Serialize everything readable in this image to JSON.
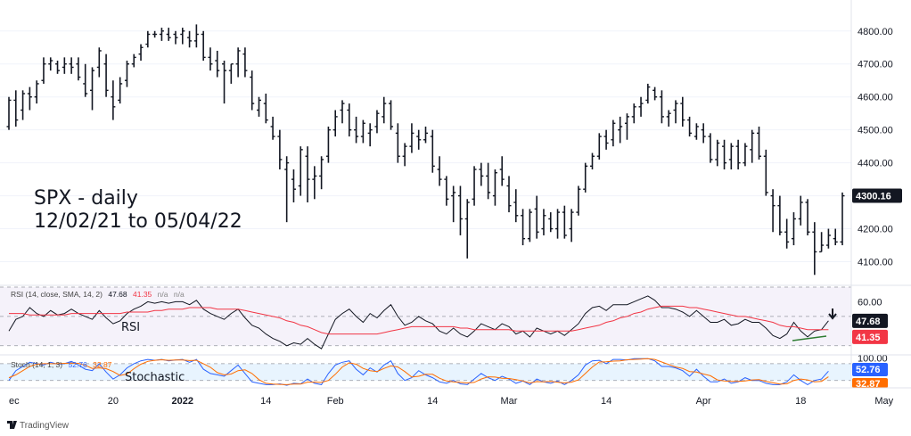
{
  "chart_data": {
    "type": "ohlc",
    "title_line1": "SPX - daily",
    "title_line2": "12/02/21 to 05/04/22",
    "brand": "TradingView",
    "price_axis": {
      "ylim": [
        4050,
        4840
      ],
      "ticks": [
        "4800.00",
        "4700.00",
        "4600.00",
        "4500.00",
        "4400.00",
        "4300.00",
        "4200.00",
        "4100.00"
      ],
      "tick_values": [
        4800,
        4700,
        4600,
        4500,
        4400,
        4300,
        4200,
        4100
      ],
      "last_price_label": "4300.16",
      "last_price": 4300.16
    },
    "x_axis": {
      "tick_labels": [
        "ec",
        "20",
        "2022",
        "14",
        "Feb",
        "14",
        "Mar",
        "14",
        "Apr",
        "18",
        "May"
      ],
      "tick_index": [
        0,
        15,
        25,
        37,
        47,
        61,
        72,
        86,
        100,
        114,
        126
      ]
    },
    "ohlc": [
      [
        4510,
        4600,
        4500,
        4590
      ],
      [
        4590,
        4620,
        4510,
        4530
      ],
      [
        4560,
        4620,
        4530,
        4610
      ],
      [
        4610,
        4630,
        4560,
        4600
      ],
      [
        4600,
        4650,
        4580,
        4640
      ],
      [
        4650,
        4720,
        4640,
        4700
      ],
      [
        4700,
        4720,
        4680,
        4710
      ],
      [
        4700,
        4710,
        4670,
        4680
      ],
      [
        4690,
        4720,
        4670,
        4700
      ],
      [
        4700,
        4720,
        4670,
        4690
      ],
      [
        4700,
        4720,
        4650,
        4660
      ],
      [
        4640,
        4700,
        4600,
        4610
      ],
      [
        4620,
        4690,
        4560,
        4680
      ],
      [
        4690,
        4750,
        4660,
        4740
      ],
      [
        4700,
        4730,
        4600,
        4620
      ],
      [
        4600,
        4650,
        4530,
        4570
      ],
      [
        4590,
        4660,
        4580,
        4640
      ],
      [
        4650,
        4710,
        4630,
        4700
      ],
      [
        4700,
        4730,
        4690,
        4720
      ],
      [
        4730,
        4760,
        4710,
        4750
      ],
      [
        4760,
        4800,
        4750,
        4790
      ],
      [
        4790,
        4800,
        4780,
        4790
      ],
      [
        4790,
        4810,
        4770,
        4800
      ],
      [
        4790,
        4810,
        4770,
        4780
      ],
      [
        4790,
        4800,
        4760,
        4780
      ],
      [
        4790,
        4810,
        4760,
        4800
      ],
      [
        4780,
        4800,
        4750,
        4770
      ],
      [
        4770,
        4820,
        4750,
        4790
      ],
      [
        4790,
        4800,
        4710,
        4720
      ],
      [
        4720,
        4750,
        4680,
        4700
      ],
      [
        4710,
        4740,
        4660,
        4680
      ],
      [
        4700,
        4710,
        4580,
        4680
      ],
      [
        4680,
        4700,
        4640,
        4700
      ],
      [
        4700,
        4750,
        4660,
        4740
      ],
      [
        4730,
        4750,
        4660,
        4680
      ],
      [
        4660,
        4680,
        4560,
        4580
      ],
      [
        4560,
        4600,
        4540,
        4590
      ],
      [
        4580,
        4610,
        4520,
        4530
      ],
      [
        4510,
        4540,
        4470,
        4480
      ],
      [
        4480,
        4500,
        4380,
        4410
      ],
      [
        4380,
        4420,
        4220,
        4400
      ],
      [
        4350,
        4380,
        4280,
        4320
      ],
      [
        4330,
        4450,
        4300,
        4440
      ],
      [
        4420,
        4450,
        4280,
        4350
      ],
      [
        4350,
        4390,
        4290,
        4360
      ],
      [
        4360,
        4420,
        4320,
        4410
      ],
      [
        4420,
        4510,
        4400,
        4500
      ],
      [
        4500,
        4560,
        4480,
        4540
      ],
      [
        4560,
        4590,
        4520,
        4580
      ],
      [
        4560,
        4580,
        4480,
        4500
      ],
      [
        4500,
        4540,
        4460,
        4480
      ],
      [
        4480,
        4530,
        4460,
        4520
      ],
      [
        4490,
        4520,
        4450,
        4500
      ],
      [
        4510,
        4560,
        4490,
        4550
      ],
      [
        4540,
        4600,
        4520,
        4580
      ],
      [
        4580,
        4590,
        4500,
        4510
      ],
      [
        4490,
        4520,
        4400,
        4420
      ],
      [
        4420,
        4460,
        4390,
        4450
      ],
      [
        4450,
        4520,
        4430,
        4490
      ],
      [
        4480,
        4500,
        4440,
        4470
      ],
      [
        4470,
        4510,
        4460,
        4490
      ],
      [
        4480,
        4500,
        4370,
        4390
      ],
      [
        4380,
        4420,
        4330,
        4350
      ],
      [
        4350,
        4360,
        4270,
        4290
      ],
      [
        4300,
        4330,
        4220,
        4310
      ],
      [
        4300,
        4330,
        4180,
        4230
      ],
      [
        4230,
        4290,
        4110,
        4280
      ],
      [
        4290,
        4390,
        4270,
        4380
      ],
      [
        4380,
        4400,
        4330,
        4360
      ],
      [
        4360,
        4400,
        4290,
        4310
      ],
      [
        4300,
        4380,
        4270,
        4370
      ],
      [
        4380,
        4420,
        4330,
        4350
      ],
      [
        4330,
        4360,
        4250,
        4270
      ],
      [
        4280,
        4320,
        4220,
        4240
      ],
      [
        4240,
        4260,
        4150,
        4170
      ],
      [
        4170,
        4260,
        4160,
        4250
      ],
      [
        4260,
        4300,
        4170,
        4190
      ],
      [
        4200,
        4260,
        4180,
        4240
      ],
      [
        4230,
        4250,
        4190,
        4200
      ],
      [
        4200,
        4260,
        4170,
        4250
      ],
      [
        4250,
        4270,
        4170,
        4180
      ],
      [
        4200,
        4260,
        4160,
        4250
      ],
      [
        4250,
        4330,
        4240,
        4320
      ],
      [
        4320,
        4400,
        4310,
        4390
      ],
      [
        4390,
        4430,
        4380,
        4420
      ],
      [
        4420,
        4490,
        4410,
        4480
      ],
      [
        4480,
        4500,
        4440,
        4460
      ],
      [
        4470,
        4530,
        4450,
        4520
      ],
      [
        4500,
        4540,
        4460,
        4510
      ],
      [
        4520,
        4550,
        4470,
        4540
      ],
      [
        4540,
        4580,
        4520,
        4570
      ],
      [
        4570,
        4600,
        4540,
        4580
      ],
      [
        4590,
        4640,
        4580,
        4630
      ],
      [
        4620,
        4630,
        4590,
        4600
      ],
      [
        4600,
        4620,
        4520,
        4540
      ],
      [
        4540,
        4560,
        4510,
        4550
      ],
      [
        4560,
        4590,
        4520,
        4580
      ],
      [
        4580,
        4600,
        4510,
        4530
      ],
      [
        4530,
        4540,
        4480,
        4490
      ],
      [
        4480,
        4520,
        4470,
        4510
      ],
      [
        4500,
        4520,
        4460,
        4480
      ],
      [
        4480,
        4490,
        4400,
        4410
      ],
      [
        4410,
        4470,
        4390,
        4460
      ],
      [
        4450,
        4470,
        4380,
        4400
      ],
      [
        4410,
        4460,
        4380,
        4450
      ],
      [
        4450,
        4470,
        4380,
        4400
      ],
      [
        4400,
        4460,
        4390,
        4450
      ],
      [
        4440,
        4500,
        4400,
        4490
      ],
      [
        4490,
        4510,
        4410,
        4420
      ],
      [
        4420,
        4440,
        4300,
        4310
      ],
      [
        4300,
        4320,
        4190,
        4270
      ],
      [
        4270,
        4300,
        4180,
        4190
      ],
      [
        4190,
        4230,
        4140,
        4160
      ],
      [
        4170,
        4250,
        4150,
        4230
      ],
      [
        4230,
        4300,
        4210,
        4280
      ],
      [
        4280,
        4290,
        4180,
        4190
      ],
      [
        4190,
        4220,
        4060,
        4130
      ],
      [
        4130,
        4190,
        4130,
        4150
      ],
      [
        4150,
        4200,
        4140,
        4180
      ],
      [
        4170,
        4200,
        4150,
        4160
      ],
      [
        4160,
        4310,
        4150,
        4300
      ]
    ],
    "rsi": {
      "header": "RSI (14, close, SMA, 14, 2)",
      "header_values": [
        "47.68",
        "41.35",
        "n/a",
        "n/a"
      ],
      "ylim": [
        25,
        70
      ],
      "tick_labels": [
        "60.00"
      ],
      "tick_values": [
        60
      ],
      "last_label": "47.68",
      "sma_label": "41.35",
      "panel_label": "RSI",
      "values": [
        40,
        48,
        50,
        56,
        52,
        50,
        54,
        51,
        52,
        55,
        52,
        50,
        48,
        54,
        49,
        45,
        47,
        52,
        55,
        57,
        60,
        59,
        60,
        59,
        60,
        60,
        58,
        61,
        55,
        52,
        50,
        48,
        52,
        55,
        49,
        44,
        42,
        38,
        35,
        33,
        30,
        32,
        31,
        35,
        31,
        28,
        38,
        48,
        52,
        55,
        50,
        46,
        52,
        49,
        54,
        58,
        50,
        44,
        46,
        50,
        47,
        45,
        40,
        38,
        42,
        38,
        36,
        40,
        45,
        43,
        41,
        45,
        43,
        38,
        40,
        36,
        42,
        40,
        38,
        40,
        37,
        41,
        45,
        52,
        56,
        57,
        54,
        58,
        58,
        58,
        60,
        62,
        64,
        61,
        56,
        56,
        55,
        53,
        50,
        54,
        50,
        46,
        46,
        48,
        44,
        45,
        48,
        46,
        46,
        42,
        37,
        35,
        38,
        46,
        40,
        36,
        40,
        41,
        47
      ],
      "sma": [
        52,
        52,
        52,
        51,
        51,
        51,
        51,
        51,
        51,
        52,
        52,
        52,
        52,
        52,
        52,
        52,
        52,
        53,
        53,
        53,
        53,
        54,
        54,
        55,
        55,
        55,
        56,
        56,
        56,
        56,
        55,
        55,
        55,
        55,
        54,
        53,
        52,
        51,
        50,
        49,
        47,
        46,
        44,
        43,
        41,
        39,
        38,
        38,
        38,
        38,
        38,
        38,
        38,
        38,
        39,
        40,
        41,
        42,
        43,
        43,
        43,
        43,
        43,
        43,
        43,
        42,
        42,
        41,
        41,
        41,
        41,
        41,
        41,
        40,
        40,
        40,
        40,
        40,
        40,
        40,
        40,
        40,
        41,
        42,
        43,
        44,
        46,
        47,
        49,
        50,
        52,
        53,
        55,
        56,
        57,
        57,
        57,
        57,
        56,
        56,
        55,
        54,
        53,
        52,
        51,
        50,
        50,
        49,
        48,
        47,
        46,
        44,
        43,
        43,
        42,
        41,
        41,
        41,
        41
      ]
    },
    "stoch": {
      "header": "Stoch (14, 1, 3)",
      "header_values": [
        "52.76",
        "32.87"
      ],
      "ylim": [
        0,
        105
      ],
      "tick_labels": [
        "100.00"
      ],
      "tick_values": [
        100
      ],
      "k_label": "52.76",
      "d_label": "32.87",
      "panel_label": "Stochastic",
      "k": [
        20,
        55,
        70,
        85,
        80,
        75,
        85,
        78,
        80,
        88,
        75,
        60,
        55,
        80,
        50,
        25,
        40,
        65,
        80,
        90,
        95,
        92,
        95,
        90,
        93,
        95,
        85,
        95,
        60,
        45,
        40,
        35,
        55,
        75,
        45,
        15,
        10,
        5,
        5,
        8,
        3,
        10,
        8,
        25,
        10,
        5,
        45,
        75,
        85,
        90,
        60,
        40,
        65,
        50,
        75,
        90,
        45,
        20,
        30,
        55,
        40,
        30,
        15,
        10,
        20,
        8,
        5,
        25,
        45,
        30,
        20,
        35,
        25,
        10,
        18,
        5,
        25,
        15,
        10,
        18,
        5,
        20,
        40,
        75,
        90,
        92,
        80,
        95,
        95,
        93,
        98,
        98,
        98,
        90,
        70,
        70,
        65,
        55,
        35,
        60,
        35,
        15,
        15,
        25,
        10,
        15,
        30,
        20,
        20,
        10,
        5,
        5,
        15,
        40,
        20,
        5,
        20,
        25,
        53
      ],
      "d": [
        30,
        40,
        55,
        70,
        78,
        80,
        80,
        80,
        81,
        82,
        81,
        74,
        63,
        65,
        62,
        52,
        38,
        43,
        62,
        78,
        88,
        92,
        94,
        92,
        93,
        93,
        91,
        92,
        80,
        67,
        48,
        40,
        43,
        55,
        58,
        45,
        23,
        10,
        7,
        6,
        5,
        7,
        7,
        14,
        14,
        13,
        20,
        42,
        68,
        83,
        78,
        63,
        55,
        52,
        63,
        72,
        68,
        52,
        32,
        35,
        42,
        42,
        28,
        18,
        15,
        13,
        11,
        13,
        25,
        33,
        32,
        28,
        27,
        23,
        18,
        11,
        16,
        15,
        17,
        14,
        11,
        14,
        22,
        45,
        68,
        86,
        87,
        89,
        90,
        94,
        95,
        96,
        98,
        95,
        86,
        77,
        68,
        63,
        52,
        50,
        43,
        37,
        22,
        18,
        17,
        17,
        18,
        22,
        23,
        17,
        12,
        7,
        8,
        20,
        25,
        22,
        15,
        17,
        33
      ]
    }
  }
}
